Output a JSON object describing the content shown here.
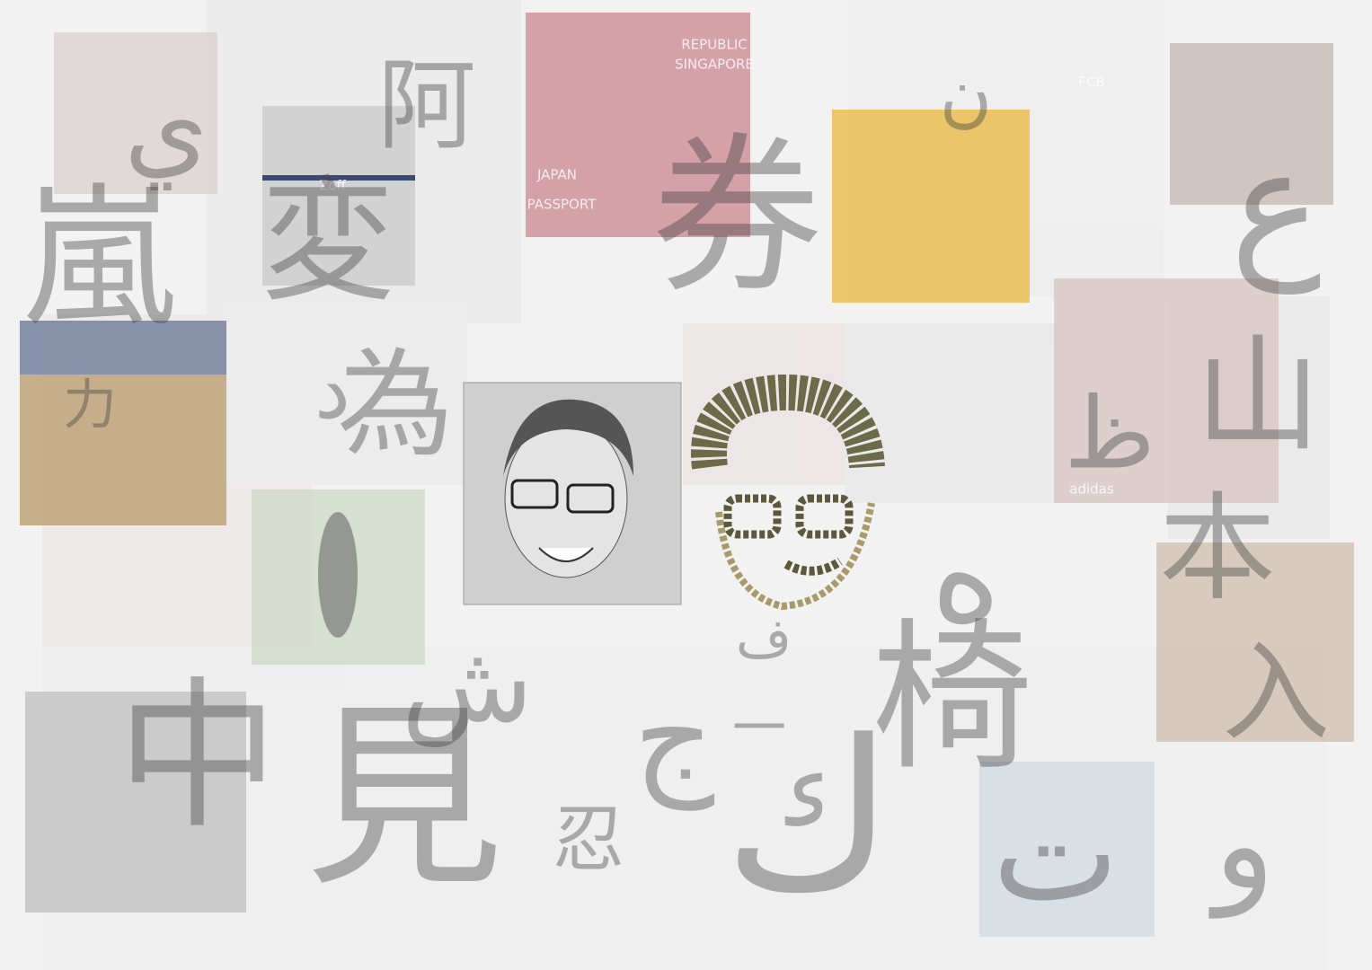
{
  "glyphs": [
    "ي",
    "阿",
    "嵐",
    "変",
    "券",
    "ن",
    "ع",
    "力",
    "د",
    "為",
    "山",
    "ظ",
    "本",
    "ه",
    "入",
    "中",
    "見",
    "ج",
    "ش",
    "忍",
    "ف",
    "一",
    "椅",
    "ك",
    "و",
    "ت"
  ],
  "photo_labels": [
    "JAPAN",
    "PASSPORT",
    "REPUBLIC",
    "SINGAPORE",
    "FCB",
    "Zoff",
    "adidas"
  ]
}
